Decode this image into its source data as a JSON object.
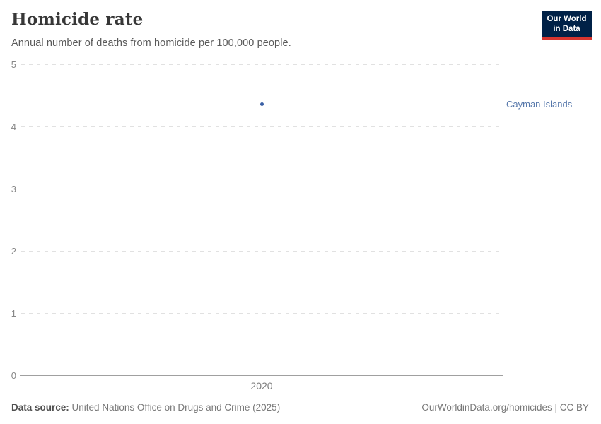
{
  "header": {
    "title": "Homicide rate",
    "subtitle": "Annual number of deaths from homicide per 100,000 people.",
    "logo": {
      "line1": "Our World",
      "line2": "in Data",
      "bg_color": "#002147",
      "accent_color": "#d7352f"
    }
  },
  "chart_data": {
    "type": "scatter",
    "title": "Homicide rate",
    "subtitle": "Annual number of deaths from homicide per 100,000 people.",
    "series": [
      {
        "name": "Cayman Islands",
        "color": "#3a5fa5",
        "label_color": "#5778ab",
        "points": [
          {
            "year": 2020,
            "value": 4.36
          }
        ]
      }
    ],
    "xticks": [
      "2020"
    ],
    "yticks": [
      0,
      1,
      2,
      3,
      4,
      5
    ],
    "ylim": [
      0,
      5
    ],
    "xlabel": "",
    "ylabel": "",
    "grid": "horizontal-dashed",
    "legend_position": "right-of-point",
    "gridline_color": "#e1e1e1",
    "axis_color": "#a0a0a0",
    "tick_label_color": "#878787"
  },
  "footer": {
    "data_source_label": "Data source:",
    "data_source_value": "United Nations Office on Drugs and Crime (2025)",
    "credit": "OurWorldinData.org/homicides | CC BY"
  }
}
